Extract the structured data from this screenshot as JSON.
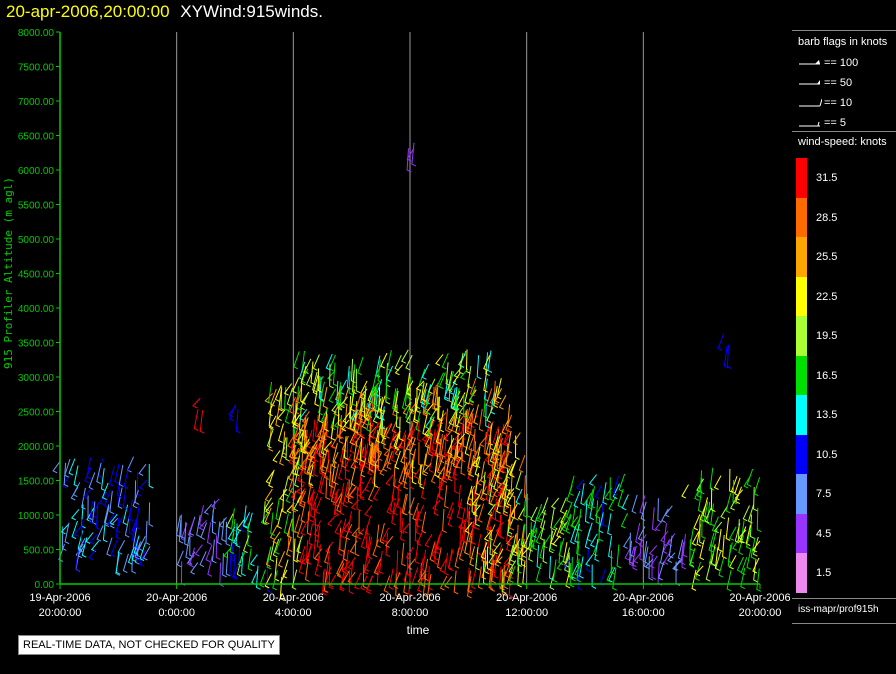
{
  "header": {
    "date": "20-apr-2006,20:00:00",
    "product": "XYWind:915winds."
  },
  "chart_data": {
    "type": "scatter",
    "plot_kind": "wind profiler barb time-height",
    "xlabel": "time",
    "ylabel": "915 Profiler Altitude (m agl)",
    "x_range_hours": [
      0,
      24
    ],
    "x_ticks": [
      {
        "hours": 0,
        "line1": "19-Apr-2006",
        "line2": "20:00:00"
      },
      {
        "hours": 4,
        "line1": "20-Apr-2006",
        "line2": "0:00:00"
      },
      {
        "hours": 8,
        "line1": "20-Apr-2006",
        "line2": "4:00:00"
      },
      {
        "hours": 12,
        "line1": "20-Apr-2006",
        "line2": "8:00:00"
      },
      {
        "hours": 16,
        "line1": "20-Apr-2006",
        "line2": "12:00:00"
      },
      {
        "hours": 20,
        "line1": "20-Apr-2006",
        "line2": "16:00:00"
      },
      {
        "hours": 24,
        "line1": "20-Apr-2006",
        "line2": "20:00:00"
      }
    ],
    "ylim": [
      0,
      8000
    ],
    "y_ticks": [
      0,
      500,
      1000,
      1500,
      2000,
      2500,
      3000,
      3500,
      4000,
      4500,
      5000,
      5500,
      6000,
      6500,
      7000,
      7500,
      8000
    ],
    "y_tick_labels": [
      "0.00",
      "500.00",
      "1000.00",
      "1500.00",
      "2000.00",
      "2500.00",
      "3000.00",
      "3500.00",
      "4000.00",
      "4500.00",
      "5000.00",
      "5500.00",
      "6000.00",
      "6500.00",
      "7000.00",
      "7500.00",
      "8000.00"
    ],
    "vertical_gridlines": true,
    "wind_regions": [
      {
        "t0": 0.0,
        "t1": 3.1,
        "h0": 400,
        "h1": 1850,
        "speed": 10,
        "spread": 4
      },
      {
        "t0": 4.1,
        "t1": 5.8,
        "h0": 300,
        "h1": 1300,
        "speed": 6,
        "spread": 3
      },
      {
        "t0": 5.8,
        "t1": 7.2,
        "h0": 200,
        "h1": 1200,
        "speed": 15,
        "spread": 5
      },
      {
        "t0": 7.2,
        "t1": 8.4,
        "h0": 100,
        "h1": 3000,
        "speed": 22,
        "spread": 6
      },
      {
        "t0": 8.0,
        "t1": 15.5,
        "h0": 100,
        "h1": 2500,
        "speed": 31,
        "spread": 3
      },
      {
        "t0": 8.0,
        "t1": 15.5,
        "h0": 1700,
        "h1": 3000,
        "speed": 26,
        "spread": 4
      },
      {
        "t0": 8.0,
        "t1": 15.0,
        "h0": 2400,
        "h1": 3400,
        "speed": 18,
        "spread": 6
      },
      {
        "t0": 14.0,
        "t1": 16.0,
        "h0": 150,
        "h1": 2200,
        "speed": 24,
        "spread": 5
      },
      {
        "t0": 15.5,
        "t1": 17.5,
        "h0": 200,
        "h1": 1400,
        "speed": 18,
        "spread": 4
      },
      {
        "t0": 17.5,
        "t1": 19.5,
        "h0": 200,
        "h1": 1600,
        "speed": 14,
        "spread": 4
      },
      {
        "t0": 19.5,
        "t1": 21.5,
        "h0": 300,
        "h1": 1300,
        "speed": 6,
        "spread": 3
      },
      {
        "t0": 21.5,
        "t1": 24.0,
        "h0": 200,
        "h1": 1700,
        "speed": 19,
        "spread": 4
      }
    ],
    "isolated_barbs": [
      {
        "t": 12.0,
        "h": 6300,
        "speed": 3
      },
      {
        "t": 4.8,
        "h": 2600,
        "speed": 30
      },
      {
        "t": 6.0,
        "h": 2500,
        "speed": 10
      },
      {
        "t": 22.8,
        "h": 3550,
        "speed": 10
      }
    ],
    "barb_flags_title": "barb flags in knots",
    "barb_flags": [
      {
        "label": "== 100",
        "knots": 100
      },
      {
        "label": "== 50",
        "knots": 50
      },
      {
        "label": "== 10",
        "knots": 10
      },
      {
        "label": "== 5",
        "knots": 5
      }
    ],
    "colorbar_title": "wind-speed: knots",
    "colorbar": [
      {
        "label": "31.5",
        "color": "#ff0000"
      },
      {
        "label": "28.5",
        "color": "#ff6a00"
      },
      {
        "label": "25.5",
        "color": "#ffa500"
      },
      {
        "label": "22.5",
        "color": "#ffff00"
      },
      {
        "label": "19.5",
        "color": "#aaff33"
      },
      {
        "label": "16.5",
        "color": "#00e000"
      },
      {
        "label": "13.5",
        "color": "#00ffff"
      },
      {
        "label": "10.5",
        "color": "#0000ff"
      },
      {
        "label": "7.5",
        "color": "#6699ff"
      },
      {
        "label": "4.5",
        "color": "#9933ff"
      },
      {
        "label": "1.5",
        "color": "#ee88ee"
      }
    ]
  },
  "footer": {
    "source": "iss-mapr/prof915h",
    "quality_notice": "REAL-TIME DATA, NOT CHECKED FOR QUALITY"
  },
  "colors": {
    "axis": "#00cc00",
    "grid": "#9a9a9a",
    "title_date": "#ffff00"
  }
}
